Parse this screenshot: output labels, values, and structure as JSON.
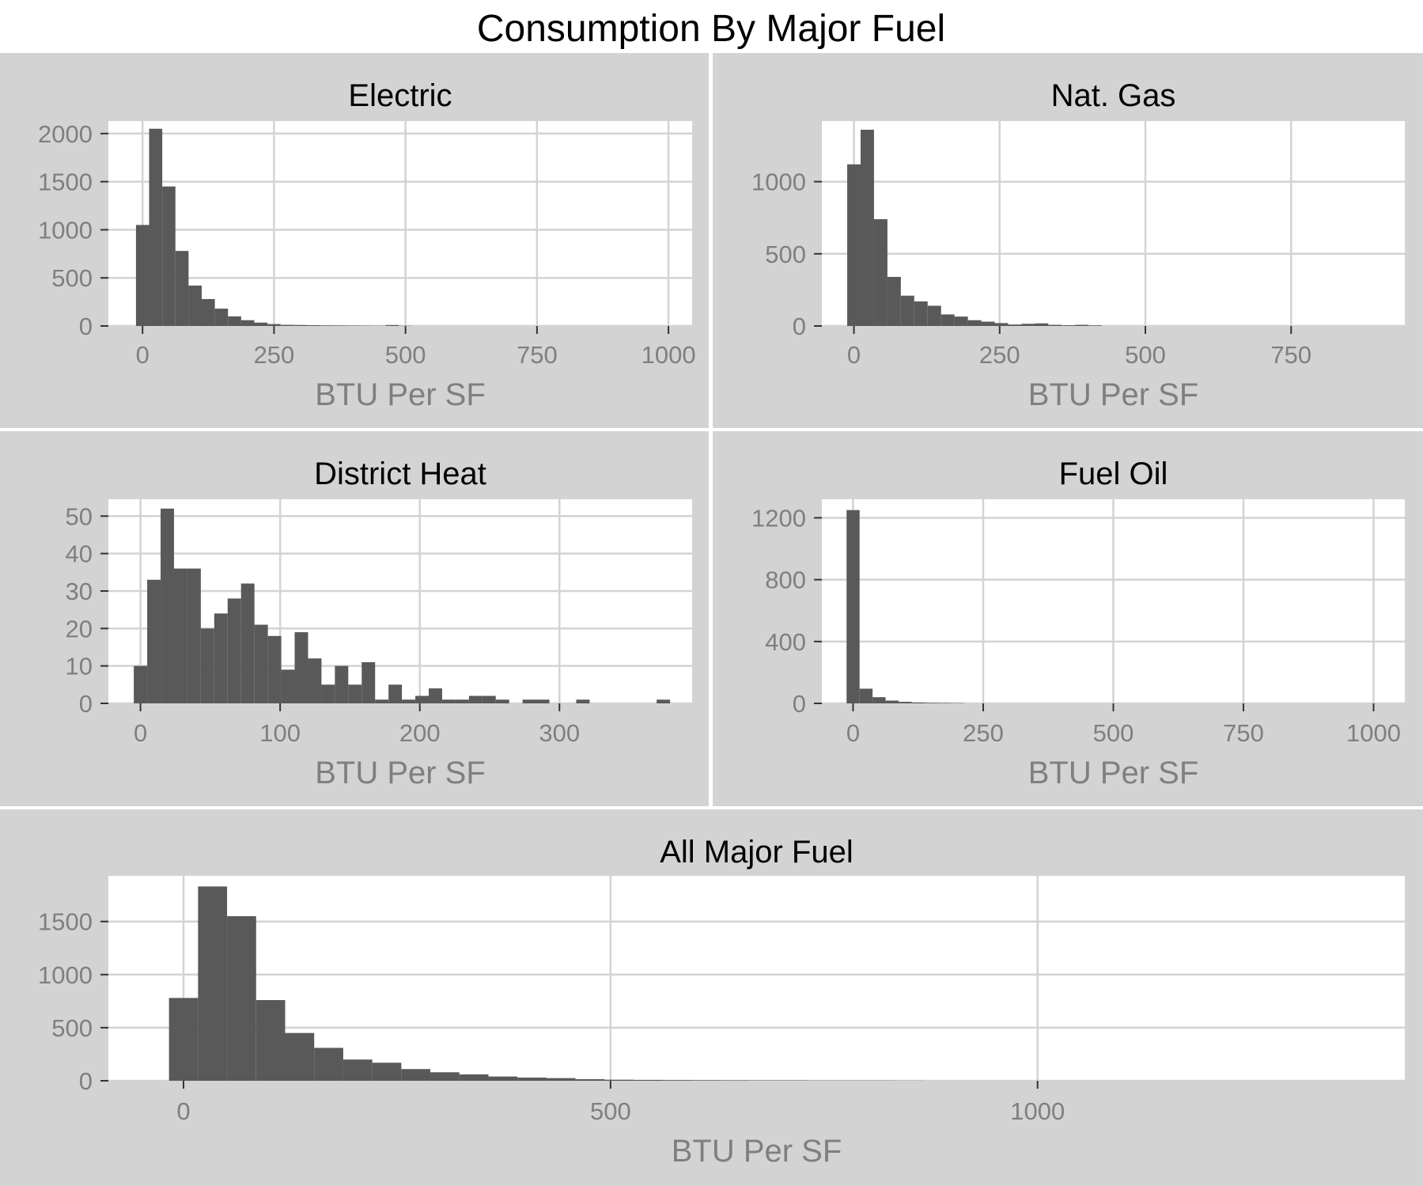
{
  "figure": {
    "title": "Consumption By Major Fuel"
  },
  "style": {
    "panel_background": "#d3d3d3",
    "plot_background": "#ffffff",
    "grid_color": "#d3d3d3",
    "bar_color": "#595959",
    "axis_text_color": "#7f7f7f",
    "title_color": "#000000"
  },
  "chart_data": [
    {
      "type": "bar",
      "title": "Electric",
      "xlabel": "BTU Per SF",
      "ylabel": "",
      "xlim": [
        -65,
        1045
      ],
      "ylim": [
        0,
        2130
      ],
      "xticks": [
        0,
        250,
        500,
        750,
        1000
      ],
      "xtick_labels": [
        "0",
        "250",
        "500",
        "750",
        "1000"
      ],
      "yticks": [
        0,
        500,
        1000,
        1500,
        2000
      ],
      "ytick_labels": [
        "0",
        "500",
        "1000",
        "1500",
        "2000"
      ],
      "grid": true,
      "bin_width": 25,
      "bins": [
        [
          -12.5,
          1050
        ],
        [
          12.5,
          2050
        ],
        [
          37.5,
          1450
        ],
        [
          62.5,
          780
        ],
        [
          87.5,
          420
        ],
        [
          112.5,
          280
        ],
        [
          137.5,
          180
        ],
        [
          162.5,
          100
        ],
        [
          187.5,
          60
        ],
        [
          212.5,
          35
        ],
        [
          237.5,
          20
        ],
        [
          262.5,
          12
        ],
        [
          287.5,
          10
        ],
        [
          312.5,
          8
        ],
        [
          337.5,
          6
        ],
        [
          362.5,
          5
        ],
        [
          387.5,
          4
        ],
        [
          412.5,
          3
        ],
        [
          437.5,
          2
        ],
        [
          462.5,
          10
        ],
        [
          487.5,
          2
        ]
      ]
    },
    {
      "type": "bar",
      "title": "Nat. Gas",
      "xlabel": "BTU Per SF",
      "ylabel": "",
      "xlim": [
        -55,
        945
      ],
      "ylim": [
        0,
        1420
      ],
      "xticks": [
        0,
        250,
        500,
        750
      ],
      "xtick_labels": [
        "0",
        "250",
        "500",
        "750"
      ],
      "yticks": [
        0,
        500,
        1000
      ],
      "ytick_labels": [
        "0",
        "500",
        "1000"
      ],
      "grid": true,
      "bin_width": 23,
      "bins": [
        [
          -11.5,
          1120
        ],
        [
          11.5,
          1360
        ],
        [
          34.5,
          740
        ],
        [
          57.5,
          340
        ],
        [
          80.5,
          210
        ],
        [
          103.5,
          170
        ],
        [
          126.5,
          140
        ],
        [
          149.5,
          80
        ],
        [
          172.5,
          65
        ],
        [
          195.5,
          40
        ],
        [
          218.5,
          30
        ],
        [
          241.5,
          20
        ],
        [
          264.5,
          10
        ],
        [
          287.5,
          15
        ],
        [
          310.5,
          18
        ],
        [
          333.5,
          8
        ],
        [
          356.5,
          5
        ],
        [
          379.5,
          8
        ],
        [
          402.5,
          4
        ]
      ]
    },
    {
      "type": "bar",
      "title": "District Heat",
      "xlabel": "BTU Per SF",
      "ylabel": "",
      "xlim": [
        -23,
        395
      ],
      "ylim": [
        0,
        54.5
      ],
      "xticks": [
        0,
        100,
        200,
        300
      ],
      "xtick_labels": [
        "0",
        "100",
        "200",
        "300"
      ],
      "yticks": [
        0,
        10,
        20,
        30,
        40,
        50
      ],
      "ytick_labels": [
        "0",
        "10",
        "20",
        "30",
        "40",
        "50"
      ],
      "grid": true,
      "bin_width": 9.6,
      "bins": [
        [
          -4.8,
          10
        ],
        [
          4.8,
          33
        ],
        [
          14.4,
          52
        ],
        [
          24.0,
          36
        ],
        [
          33.6,
          36
        ],
        [
          43.2,
          20
        ],
        [
          52.8,
          24
        ],
        [
          62.4,
          28
        ],
        [
          72.0,
          32
        ],
        [
          81.6,
          21
        ],
        [
          91.2,
          18
        ],
        [
          100.8,
          9
        ],
        [
          110.4,
          19
        ],
        [
          120.0,
          12
        ],
        [
          129.6,
          5
        ],
        [
          139.2,
          10
        ],
        [
          148.8,
          5
        ],
        [
          158.4,
          11
        ],
        [
          168.0,
          1
        ],
        [
          177.6,
          5
        ],
        [
          187.2,
          1
        ],
        [
          196.8,
          2
        ],
        [
          206.4,
          4
        ],
        [
          216.0,
          1
        ],
        [
          225.6,
          1
        ],
        [
          235.2,
          2
        ],
        [
          244.8,
          2
        ],
        [
          254.4,
          1
        ],
        [
          273.6,
          1
        ],
        [
          283.2,
          1
        ],
        [
          312.0,
          1
        ],
        [
          369.6,
          1
        ]
      ]
    },
    {
      "type": "bar",
      "title": "Fuel Oil",
      "xlabel": "BTU Per SF",
      "ylabel": "",
      "xlim": [
        -60,
        1060
      ],
      "ylim": [
        0,
        1320
      ],
      "xticks": [
        0,
        250,
        500,
        750,
        1000
      ],
      "xtick_labels": [
        "0",
        "250",
        "500",
        "750",
        "1000"
      ],
      "yticks": [
        0,
        400,
        800,
        1200
      ],
      "ytick_labels": [
        "0",
        "400",
        "800",
        "1200"
      ],
      "grid": true,
      "bin_width": 25,
      "bins": [
        [
          -12.5,
          1250
        ],
        [
          12.5,
          95
        ],
        [
          37.5,
          40
        ],
        [
          62.5,
          18
        ],
        [
          87.5,
          10
        ],
        [
          112.5,
          6
        ],
        [
          137.5,
          4
        ],
        [
          162.5,
          3
        ],
        [
          187.5,
          2
        ]
      ]
    },
    {
      "type": "bar",
      "title": "All Major Fuel",
      "xlabel": "BTU Per SF",
      "ylabel": "",
      "xlim": [
        -88,
        1430
      ],
      "ylim": [
        0,
        1930
      ],
      "xticks": [
        0,
        500,
        1000
      ],
      "xtick_labels": [
        "0",
        "500",
        "1000"
      ],
      "yticks": [
        0,
        500,
        1000,
        1500
      ],
      "ytick_labels": [
        "0",
        "500",
        "1000",
        "1500"
      ],
      "grid": true,
      "bin_width": 34,
      "bins": [
        [
          -17,
          780
        ],
        [
          17,
          1830
        ],
        [
          51,
          1550
        ],
        [
          85,
          760
        ],
        [
          119,
          450
        ],
        [
          153,
          310
        ],
        [
          187,
          200
        ],
        [
          221,
          170
        ],
        [
          255,
          110
        ],
        [
          289,
          80
        ],
        [
          323,
          60
        ],
        [
          357,
          40
        ],
        [
          391,
          30
        ],
        [
          425,
          25
        ],
        [
          459,
          15
        ],
        [
          493,
          10
        ],
        [
          527,
          8
        ],
        [
          561,
          6
        ],
        [
          595,
          5
        ],
        [
          629,
          4
        ],
        [
          663,
          3
        ],
        [
          697,
          3
        ],
        [
          731,
          2
        ],
        [
          765,
          2
        ],
        [
          799,
          2
        ],
        [
          833,
          1
        ]
      ]
    }
  ]
}
